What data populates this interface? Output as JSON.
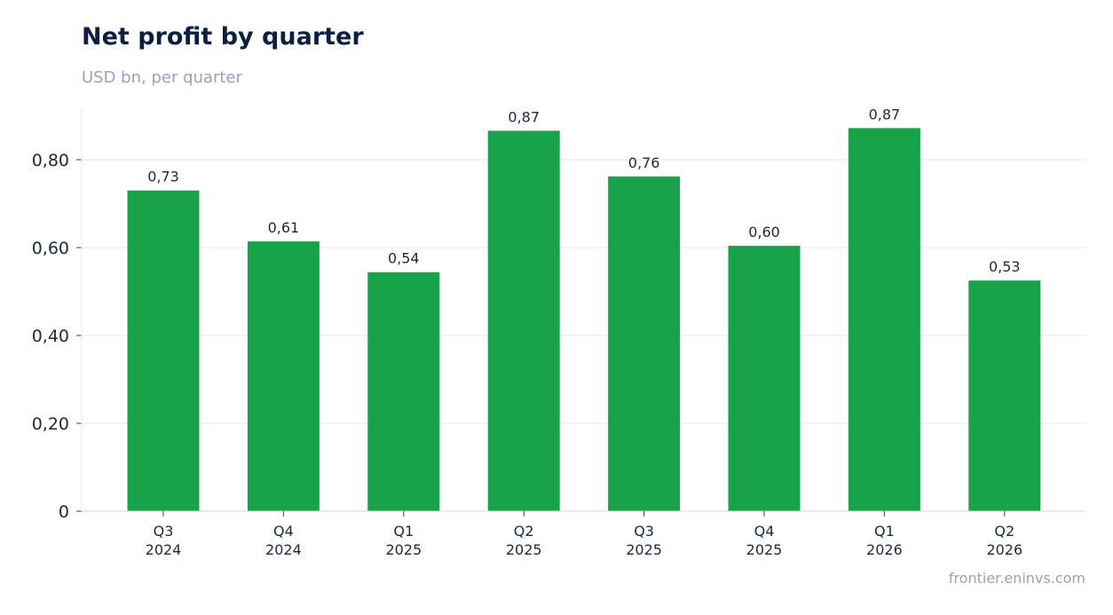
{
  "chart_data": {
    "type": "bar",
    "title": "Net profit by quarter",
    "subtitle": "USD bn, per quarter",
    "source": "frontier.eninvs.com",
    "categories": [
      [
        "Q3",
        "2024"
      ],
      [
        "Q4",
        "2024"
      ],
      [
        "Q1",
        "2025"
      ],
      [
        "Q2",
        "2025"
      ],
      [
        "Q3",
        "2025"
      ],
      [
        "Q4",
        "2025"
      ],
      [
        "Q1",
        "2026"
      ],
      [
        "Q2",
        "2026"
      ]
    ],
    "values": [
      0.73,
      0.614,
      0.544,
      0.866,
      0.762,
      0.604,
      0.872,
      0.525
    ],
    "data_labels": [
      "0,73",
      "0,61",
      "0,54",
      "0,87",
      "0,76",
      "0,60",
      "0,87",
      "0,53"
    ],
    "y_ticks": [
      0,
      0.2,
      0.4,
      0.6,
      0.8
    ],
    "y_tick_labels": [
      "0",
      "0,20",
      "0,40",
      "0,60",
      "0,80"
    ],
    "ylim": [
      0,
      0.92
    ],
    "xlabel": "",
    "ylabel": "",
    "grid": true,
    "legend": "none",
    "bar_color": "#18a34a",
    "grid_color": "#e5e7eb",
    "axis_color": "#d1d5db"
  }
}
